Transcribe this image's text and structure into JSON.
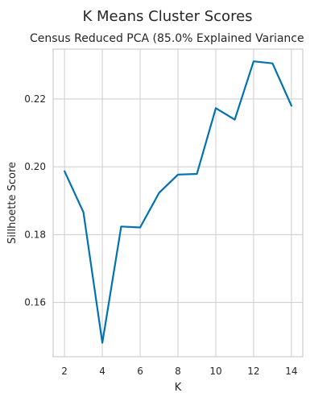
{
  "chart_data": {
    "type": "line",
    "title": "K Means Cluster Scores",
    "subtitle": "Census Reduced PCA (85.0% Explained Variance",
    "xlabel": "K",
    "ylabel": "Sillhoette Score",
    "x": [
      2,
      3,
      4,
      5,
      6,
      7,
      8,
      9,
      10,
      11,
      12,
      13,
      14
    ],
    "series": [
      {
        "values": [
          0.1987,
          0.1866,
          0.1481,
          0.1824,
          0.1821,
          0.1923,
          0.1977,
          0.1979,
          0.2173,
          0.2139,
          0.2311,
          0.2305,
          0.218
        ]
      }
    ],
    "xlim": [
      1.4,
      14.6
    ],
    "ylim": [
      0.144,
      0.2347
    ],
    "xticks": [
      2,
      4,
      6,
      8,
      10,
      12,
      14
    ],
    "yticks": [
      0.16,
      0.18,
      0.2,
      0.22
    ],
    "ytick_labels": [
      "0.16",
      "0.18",
      "0.20",
      "0.22"
    ],
    "grid": true,
    "line_color": "#0072B2"
  }
}
